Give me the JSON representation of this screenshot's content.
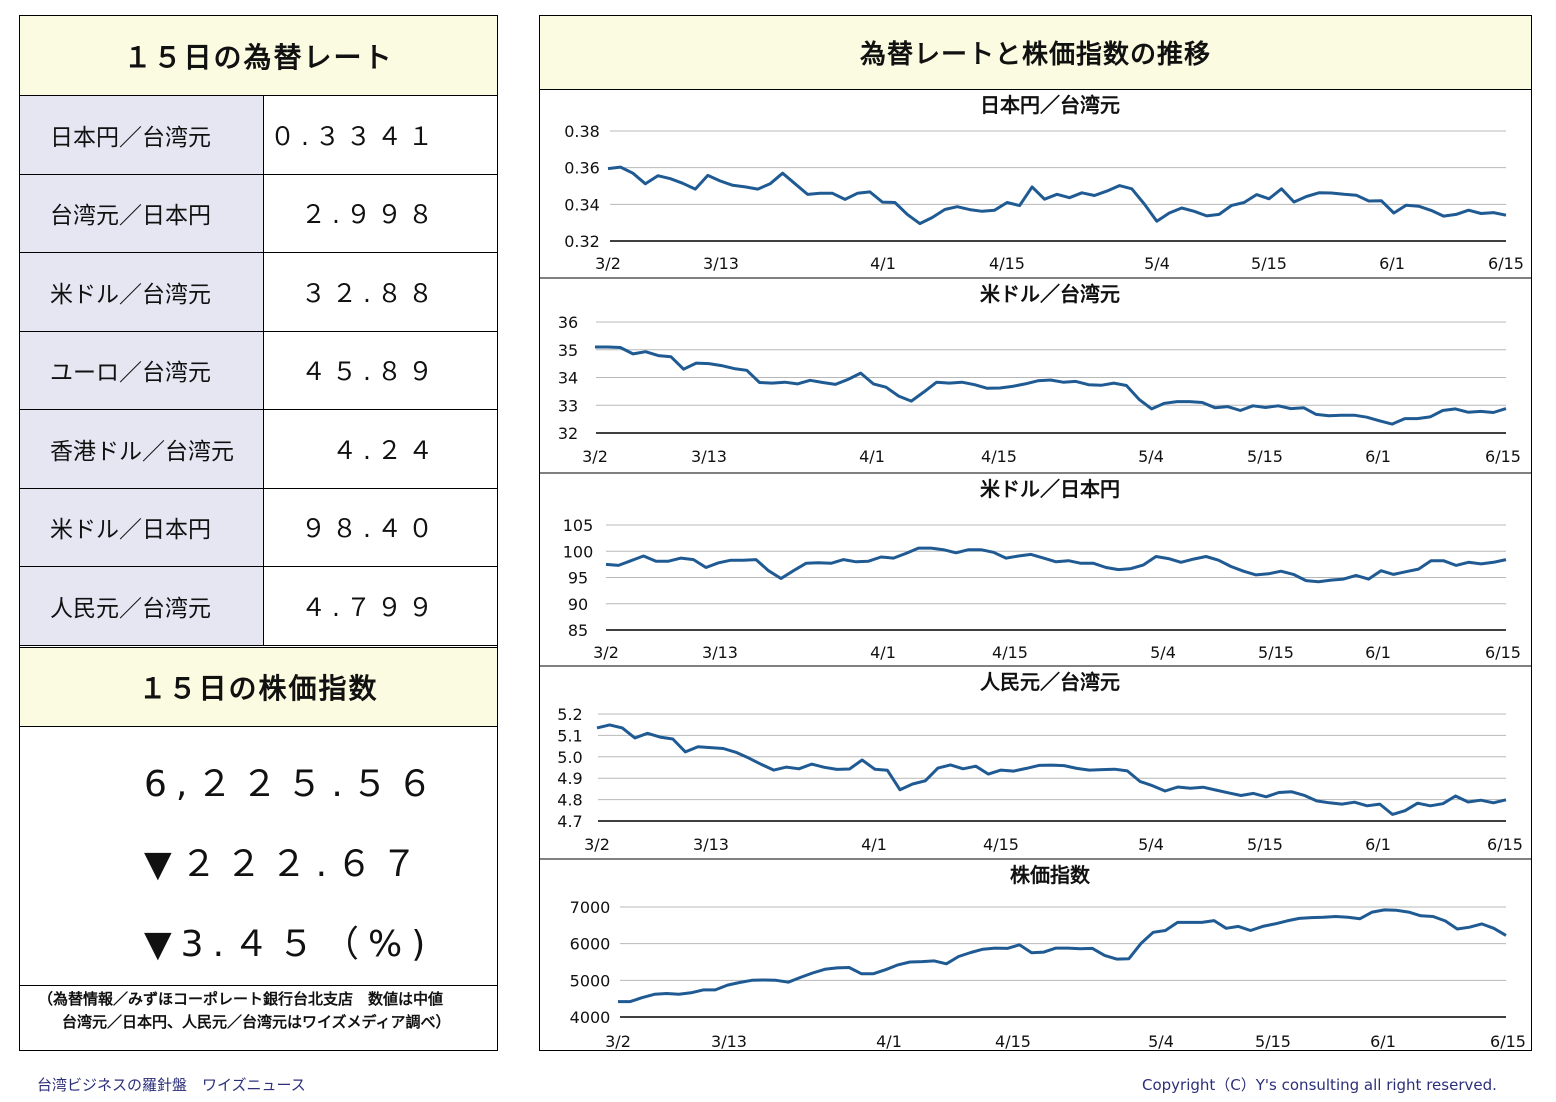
{
  "rates_panel": {
    "title": "１５日の為替レート",
    "rows": [
      {
        "label": "日本円／台湾元",
        "value": "０.３３４１"
      },
      {
        "label": "台湾元／日本円",
        "value": "２.９９８"
      },
      {
        "label": "米ドル／台湾元",
        "value": "３２.８８"
      },
      {
        "label": "ユーロ／台湾元",
        "value": "４５.８９"
      },
      {
        "label": "香港ドル／台湾元",
        "value": "４.２４"
      },
      {
        "label": "米ドル／日本円",
        "value": "９８.４０"
      },
      {
        "label": "人民元／台湾元",
        "value": "４.７９９"
      }
    ]
  },
  "stock_panel": {
    "title": "１５日の株価指数",
    "value": "6,２２５.５６",
    "change": "▼２２２.６７",
    "change_pct": "▼3.４５（%)"
  },
  "source_note": {
    "line1": "（為替情報／みずほコーポレート銀行台北支店　数値は中値",
    "line2": "台湾元／日本円、人民元／台湾元はワイズメディア調べ）"
  },
  "charts_panel": {
    "title": "為替レートと株価指数の推移"
  },
  "colors": {
    "line": "#1f5a93",
    "header_bg": "#fbfbe1",
    "label_bg": "#e5e6f2",
    "footer_text": "#2c2f7a"
  },
  "footer": {
    "left": "台湾ビジネスの羅針盤　ワイズニュース",
    "right": "Copyright（C）Y's consulting all right reserved."
  },
  "chart_data": [
    {
      "type": "line",
      "title": "日本円／台湾元",
      "x_ticks": [
        "3/2",
        "3/13",
        "4/1",
        "4/15",
        "5/4",
        "5/15",
        "6/1",
        "6/15"
      ],
      "y_ticks": [
        "0.32",
        "0.34",
        "0.36",
        "0.38"
      ],
      "ylim": [
        0.32,
        0.38
      ],
      "grid": true,
      "values": [
        0.3595,
        0.3603,
        0.357,
        0.3512,
        0.3556,
        0.354,
        0.3515,
        0.3483,
        0.3558,
        0.3527,
        0.3504,
        0.3495,
        0.3483,
        0.3512,
        0.357,
        0.3512,
        0.3454,
        0.346,
        0.346,
        0.3427,
        0.346,
        0.3468,
        0.3412,
        0.341,
        0.3345,
        0.3295,
        0.3328,
        0.3372,
        0.3387,
        0.3371,
        0.3362,
        0.3368,
        0.341,
        0.3393,
        0.3495,
        0.3428,
        0.3455,
        0.3436,
        0.3463,
        0.3448,
        0.3472,
        0.3502,
        0.3485,
        0.3402,
        0.3308,
        0.3353,
        0.338,
        0.3362,
        0.3337,
        0.3345,
        0.3394,
        0.341,
        0.3453,
        0.343,
        0.3485,
        0.3413,
        0.3443,
        0.3463,
        0.3462,
        0.3455,
        0.345,
        0.3418,
        0.342,
        0.3353,
        0.3395,
        0.339,
        0.3367,
        0.3336,
        0.3345,
        0.3368,
        0.335,
        0.3355,
        0.3341
      ]
    },
    {
      "type": "line",
      "title": "米ドル／台湾元",
      "x_ticks": [
        "3/2",
        "3/13",
        "4/1",
        "4/15",
        "5/4",
        "5/15",
        "6/1",
        "6/15"
      ],
      "y_ticks": [
        "32",
        "33",
        "34",
        "35",
        "36"
      ],
      "ylim": [
        32,
        36
      ],
      "grid": true,
      "values": [
        35.1,
        35.1,
        35.08,
        34.85,
        34.93,
        34.79,
        34.75,
        34.3,
        34.52,
        34.5,
        34.43,
        34.32,
        34.26,
        33.82,
        33.8,
        33.83,
        33.77,
        33.9,
        33.82,
        33.75,
        33.93,
        34.16,
        33.77,
        33.65,
        33.33,
        33.15,
        33.48,
        33.83,
        33.8,
        33.83,
        33.74,
        33.61,
        33.62,
        33.68,
        33.77,
        33.88,
        33.91,
        33.83,
        33.86,
        33.74,
        33.72,
        33.8,
        33.71,
        33.21,
        32.87,
        33.07,
        33.13,
        33.13,
        33.1,
        32.91,
        32.95,
        32.81,
        32.98,
        32.92,
        32.98,
        32.88,
        32.91,
        32.67,
        32.62,
        32.64,
        32.64,
        32.57,
        32.44,
        32.32,
        32.52,
        32.52,
        32.58,
        32.81,
        32.87,
        32.75,
        32.78,
        32.74,
        32.88
      ]
    },
    {
      "type": "line",
      "title": "米ドル／日本円",
      "x_ticks": [
        "3/2",
        "3/13",
        "4/1",
        "4/15",
        "5/4",
        "5/15",
        "6/1",
        "6/15"
      ],
      "y_ticks": [
        "85",
        "90",
        "95",
        "100",
        "105"
      ],
      "ylim": [
        85,
        105
      ],
      "grid": true,
      "values": [
        97.5,
        97.3,
        98.2,
        99.1,
        98.1,
        98.1,
        98.7,
        98.4,
        96.9,
        97.8,
        98.3,
        98.3,
        98.4,
        96.3,
        94.8,
        96.3,
        97.7,
        97.8,
        97.7,
        98.4,
        98.0,
        98.1,
        98.9,
        98.7,
        99.6,
        100.6,
        100.6,
        100.3,
        99.7,
        100.3,
        100.3,
        99.8,
        98.7,
        99.1,
        99.4,
        98.7,
        98.0,
        98.2,
        97.7,
        97.7,
        96.9,
        96.5,
        96.7,
        97.4,
        99.0,
        98.6,
        97.9,
        98.5,
        99.0,
        98.3,
        97.1,
        96.2,
        95.5,
        95.7,
        96.2,
        95.6,
        94.4,
        94.2,
        94.5,
        94.7,
        95.4,
        94.7,
        96.3,
        95.6,
        96.1,
        96.6,
        98.2,
        98.2,
        97.3,
        97.9,
        97.6,
        97.9,
        98.4
      ]
    },
    {
      "type": "line",
      "title": "人民元／台湾元",
      "x_ticks": [
        "3/2",
        "3/13",
        "4/1",
        "4/15",
        "5/4",
        "5/15",
        "6/1",
        "6/15"
      ],
      "y_ticks": [
        "4.7",
        "4.8",
        "4.9",
        "5.0",
        "5.1",
        "5.2"
      ],
      "ylim": [
        4.7,
        5.2
      ],
      "grid": true,
      "values": [
        5.135,
        5.149,
        5.135,
        5.088,
        5.11,
        5.092,
        5.083,
        5.023,
        5.047,
        5.043,
        5.039,
        5.021,
        4.995,
        4.965,
        4.938,
        4.952,
        4.944,
        4.966,
        4.951,
        4.941,
        4.943,
        4.985,
        4.942,
        4.937,
        4.846,
        4.873,
        4.888,
        4.947,
        4.962,
        4.944,
        4.956,
        4.919,
        4.938,
        4.933,
        4.946,
        4.96,
        4.961,
        4.959,
        4.946,
        4.938,
        4.94,
        4.942,
        4.934,
        4.885,
        4.865,
        4.84,
        4.859,
        4.853,
        4.858,
        4.845,
        4.832,
        4.819,
        4.829,
        4.813,
        4.833,
        4.837,
        4.82,
        4.794,
        4.785,
        4.779,
        4.788,
        4.771,
        4.779,
        4.731,
        4.748,
        4.783,
        4.771,
        4.781,
        4.817,
        4.789,
        4.797,
        4.785,
        4.799
      ]
    },
    {
      "type": "line",
      "title": "株価指数",
      "x_ticks": [
        "3/2",
        "3/13",
        "4/1",
        "4/15",
        "5/4",
        "5/15",
        "6/1",
        "6/15"
      ],
      "y_ticks": [
        "4000",
        "5000",
        "6000",
        "7000"
      ],
      "ylim": [
        4000,
        7000
      ],
      "grid": true,
      "values": [
        4420,
        4420,
        4530,
        4620,
        4640,
        4620,
        4660,
        4740,
        4740,
        4870,
        4940,
        5000,
        5010,
        5000,
        4950,
        5080,
        5200,
        5300,
        5340,
        5350,
        5180,
        5180,
        5290,
        5420,
        5500,
        5510,
        5530,
        5450,
        5650,
        5760,
        5850,
        5880,
        5870,
        5970,
        5750,
        5770,
        5880,
        5880,
        5860,
        5870,
        5680,
        5580,
        5590,
        6010,
        6310,
        6360,
        6580,
        6580,
        6580,
        6630,
        6420,
        6470,
        6360,
        6470,
        6540,
        6620,
        6690,
        6710,
        6720,
        6740,
        6720,
        6680,
        6860,
        6920,
        6910,
        6860,
        6760,
        6740,
        6620,
        6400,
        6450,
        6540,
        6420,
        6225
      ]
    }
  ]
}
